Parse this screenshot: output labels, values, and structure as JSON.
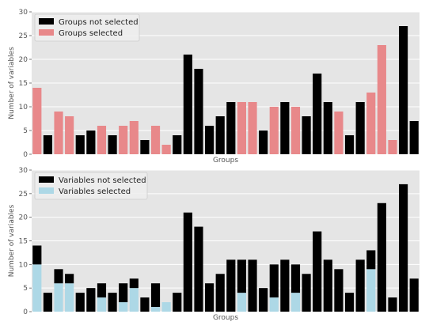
{
  "chart_data": [
    {
      "type": "bar",
      "xlabel": "Groups",
      "ylabel": "Number of variables",
      "ylim": [
        0,
        30
      ],
      "yticks": [
        0,
        5,
        10,
        15,
        20,
        25,
        30
      ],
      "grid": true,
      "legend_position": "top-left",
      "series": [
        {
          "name": "Groups not selected",
          "color": "#000000"
        },
        {
          "name": "Groups selected",
          "color": "#e8888a"
        }
      ],
      "values": [
        14,
        4,
        9,
        8,
        4,
        5,
        6,
        4,
        6,
        7,
        3,
        6,
        2,
        4,
        21,
        18,
        6,
        8,
        11,
        11,
        11,
        5,
        10,
        11,
        10,
        8,
        17,
        11,
        9,
        4,
        11,
        13,
        23,
        3,
        27,
        7
      ],
      "selected": [
        1,
        0,
        1,
        1,
        0,
        0,
        1,
        0,
        1,
        1,
        0,
        1,
        1,
        0,
        0,
        0,
        0,
        0,
        0,
        1,
        1,
        0,
        1,
        0,
        1,
        0,
        0,
        0,
        1,
        0,
        0,
        1,
        1,
        1,
        0,
        0
      ]
    },
    {
      "type": "bar",
      "xlabel": "Groups",
      "ylabel": "Number of variables",
      "ylim": [
        0,
        30
      ],
      "yticks": [
        0,
        5,
        10,
        15,
        20,
        25,
        30
      ],
      "grid": true,
      "legend_position": "top-left",
      "series": [
        {
          "name": "Variables not selected",
          "color": "#000000"
        },
        {
          "name": "Variables selected",
          "color": "#add8e6"
        }
      ],
      "totals": [
        14,
        4,
        9,
        8,
        4,
        5,
        6,
        4,
        6,
        7,
        3,
        6,
        2,
        4,
        21,
        18,
        6,
        8,
        11,
        11,
        11,
        5,
        10,
        11,
        10,
        8,
        17,
        11,
        9,
        4,
        11,
        13,
        23,
        3,
        27,
        7
      ],
      "selected_values": [
        10,
        0,
        6,
        6,
        0,
        0,
        3,
        0,
        2,
        5,
        0,
        1,
        2,
        0,
        0,
        0,
        0,
        0,
        0,
        4,
        0,
        0,
        3,
        0,
        4,
        0,
        0,
        0,
        0,
        0,
        0,
        9,
        0,
        0,
        0,
        0
      ]
    }
  ]
}
